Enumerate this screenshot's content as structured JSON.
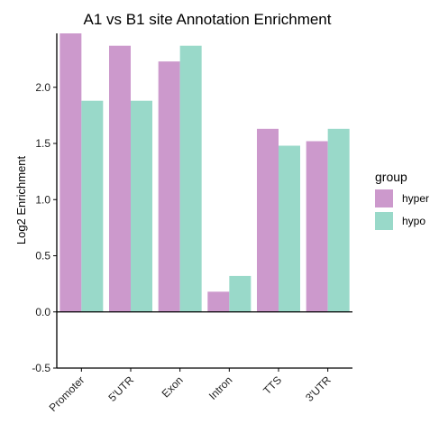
{
  "chart_data": {
    "type": "bar",
    "title": "A1 vs B1 site Annotation Enrichment",
    "xlabel": "",
    "ylabel": "Log2 Enrichment",
    "categories": [
      "Promoter",
      "5'UTR",
      "Exon",
      "Intron",
      "TTS",
      "3'UTR"
    ],
    "series": [
      {
        "name": "hyper",
        "values": [
          2.48,
          2.37,
          2.23,
          0.18,
          1.63,
          1.52
        ]
      },
      {
        "name": "hypo",
        "values": [
          1.88,
          1.88,
          2.37,
          0.32,
          1.48,
          1.63
        ]
      }
    ],
    "ylim": [
      -0.5,
      2.48
    ],
    "yticks": [
      -0.5,
      0.0,
      0.5,
      1.0,
      1.5,
      2.0
    ],
    "ytick_labels": [
      "-0.5",
      "0.0",
      "0.5",
      "1.0",
      "1.5",
      "2.0"
    ],
    "legend": {
      "title": "group",
      "position": "right"
    },
    "colors": {
      "hyper": "#cc99cc",
      "hypo": "#99d9c9"
    },
    "grid": false
  }
}
